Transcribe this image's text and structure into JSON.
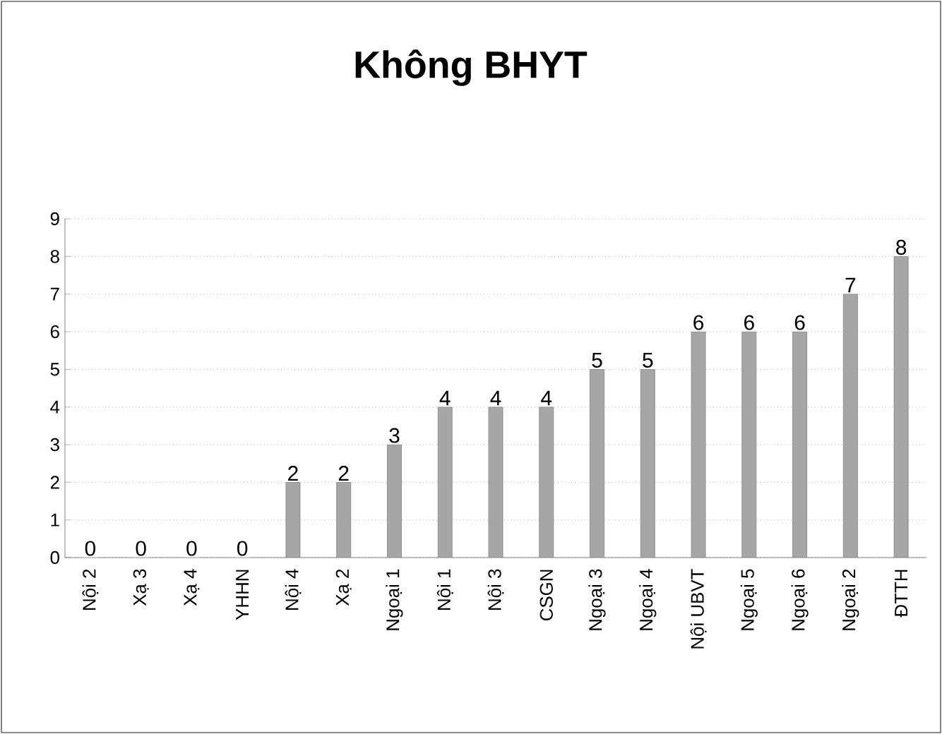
{
  "chart_data": {
    "type": "bar",
    "title": "Không BHYT",
    "categories": [
      "Nội 2",
      "Xạ 3",
      "Xạ 4",
      "YHHN",
      "Nội 4",
      "Xạ 2",
      "Ngoại 1",
      "Nội 1",
      "Nội 3",
      "CSGN",
      "Ngoại 3",
      "Ngoại 4",
      "Nội UBVT",
      "Ngoại 5",
      "Ngoại 6",
      "Ngoại 2",
      "ĐTTH"
    ],
    "values": [
      0,
      0,
      0,
      0,
      2,
      2,
      3,
      4,
      4,
      4,
      5,
      5,
      6,
      6,
      6,
      7,
      8
    ],
    "color": "#a6a6a6",
    "ylim": [
      0,
      9
    ],
    "yticks": [
      0,
      1,
      2,
      3,
      4,
      5,
      6,
      7,
      8,
      9
    ],
    "grid": "y",
    "data_labels": true
  }
}
